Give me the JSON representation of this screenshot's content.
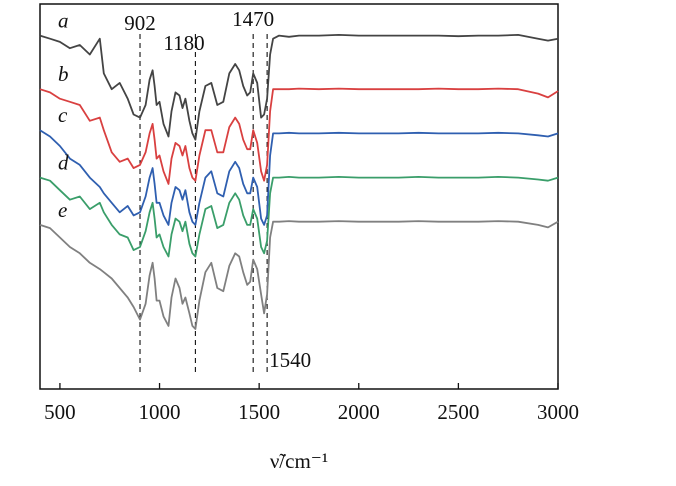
{
  "chart_data": {
    "type": "line",
    "title": "",
    "xlabel": "ν̃/cm⁻¹",
    "ylabel": "",
    "xlim": [
      400,
      3000
    ],
    "x_ticks": [
      500,
      1000,
      1500,
      2000,
      2500,
      3000
    ],
    "grid": false,
    "legend": "none",
    "series": [
      {
        "name": "a",
        "color": "#444444",
        "x": [
          400,
          450,
          500,
          550,
          600,
          650,
          700,
          720,
          760,
          800,
          840,
          870,
          902,
          930,
          950,
          965,
          975,
          985,
          1000,
          1020,
          1045,
          1060,
          1080,
          1100,
          1115,
          1130,
          1150,
          1165,
          1180,
          1200,
          1230,
          1260,
          1290,
          1320,
          1350,
          1380,
          1400,
          1420,
          1440,
          1455,
          1470,
          1490,
          1510,
          1525,
          1540,
          1555,
          1570,
          1600,
          1650,
          1700,
          1800,
          1900,
          2000,
          2100,
          2200,
          2300,
          2400,
          2500,
          2600,
          2700,
          2800,
          2900,
          2950,
          3000
        ],
        "y": [
          5.6,
          5.55,
          5.5,
          5.4,
          5.45,
          5.3,
          5.55,
          5.0,
          4.75,
          4.85,
          4.6,
          4.35,
          4.3,
          4.5,
          4.9,
          5.05,
          4.8,
          4.5,
          4.55,
          4.2,
          4.0,
          4.4,
          4.7,
          4.65,
          4.45,
          4.6,
          4.25,
          4.05,
          3.95,
          4.4,
          4.8,
          4.85,
          4.5,
          4.55,
          5.0,
          5.15,
          5.05,
          4.8,
          4.65,
          4.7,
          5.0,
          4.85,
          4.3,
          4.35,
          4.6,
          5.3,
          5.55,
          5.6,
          5.58,
          5.6,
          5.6,
          5.61,
          5.6,
          5.6,
          5.6,
          5.6,
          5.6,
          5.59,
          5.6,
          5.6,
          5.61,
          5.55,
          5.52,
          5.55
        ]
      },
      {
        "name": "b",
        "color": "#d94040",
        "x": [
          400,
          450,
          500,
          550,
          600,
          650,
          700,
          720,
          760,
          800,
          840,
          870,
          902,
          930,
          950,
          965,
          975,
          985,
          1000,
          1020,
          1045,
          1060,
          1080,
          1100,
          1115,
          1130,
          1150,
          1165,
          1180,
          1200,
          1230,
          1260,
          1290,
          1320,
          1350,
          1380,
          1400,
          1420,
          1440,
          1455,
          1470,
          1490,
          1510,
          1525,
          1540,
          1555,
          1570,
          1600,
          1650,
          1700,
          1800,
          1900,
          2000,
          2100,
          2200,
          2300,
          2400,
          2500,
          2600,
          2700,
          2800,
          2900,
          2950,
          3000
        ],
        "y": [
          4.75,
          4.7,
          4.6,
          4.55,
          4.5,
          4.25,
          4.3,
          4.1,
          3.75,
          3.6,
          3.65,
          3.5,
          3.55,
          3.75,
          4.05,
          4.2,
          3.95,
          3.65,
          3.7,
          3.45,
          3.25,
          3.65,
          3.9,
          3.85,
          3.7,
          3.85,
          3.5,
          3.35,
          3.3,
          3.7,
          4.1,
          4.1,
          3.75,
          3.75,
          4.15,
          4.3,
          4.2,
          3.95,
          3.8,
          3.8,
          4.1,
          3.9,
          3.45,
          3.3,
          3.55,
          4.4,
          4.75,
          4.75,
          4.75,
          4.76,
          4.75,
          4.76,
          4.75,
          4.75,
          4.75,
          4.75,
          4.76,
          4.75,
          4.75,
          4.76,
          4.75,
          4.68,
          4.62,
          4.72
        ]
      },
      {
        "name": "c",
        "color": "#2f5fb0",
        "x": [
          400,
          450,
          500,
          550,
          600,
          650,
          700,
          720,
          760,
          800,
          840,
          870,
          902,
          930,
          950,
          965,
          975,
          985,
          1000,
          1020,
          1045,
          1060,
          1080,
          1100,
          1115,
          1130,
          1150,
          1165,
          1180,
          1200,
          1230,
          1260,
          1290,
          1320,
          1350,
          1380,
          1400,
          1420,
          1440,
          1455,
          1470,
          1490,
          1510,
          1525,
          1540,
          1555,
          1570,
          1600,
          1650,
          1700,
          1800,
          1900,
          2000,
          2100,
          2200,
          2300,
          2400,
          2500,
          2600,
          2700,
          2800,
          2900,
          2950,
          3000
        ],
        "y": [
          4.1,
          4.0,
          3.85,
          3.65,
          3.55,
          3.35,
          3.2,
          3.1,
          2.95,
          2.8,
          2.9,
          2.75,
          2.8,
          3.05,
          3.35,
          3.5,
          3.25,
          2.95,
          2.95,
          2.75,
          2.6,
          2.95,
          3.2,
          3.15,
          3.0,
          3.15,
          2.8,
          2.65,
          2.6,
          2.95,
          3.35,
          3.45,
          3.1,
          3.05,
          3.45,
          3.6,
          3.5,
          3.25,
          3.1,
          3.1,
          3.35,
          3.2,
          2.7,
          2.6,
          2.75,
          3.7,
          4.05,
          4.05,
          4.06,
          4.05,
          4.05,
          4.06,
          4.05,
          4.05,
          4.05,
          4.06,
          4.05,
          4.05,
          4.05,
          4.06,
          4.05,
          4.02,
          4.0,
          4.05
        ]
      },
      {
        "name": "d",
        "color": "#3a9e6a",
        "x": [
          400,
          450,
          500,
          550,
          600,
          650,
          700,
          720,
          760,
          800,
          840,
          870,
          902,
          930,
          950,
          965,
          975,
          985,
          1000,
          1020,
          1045,
          1060,
          1080,
          1100,
          1115,
          1130,
          1150,
          1165,
          1180,
          1200,
          1230,
          1260,
          1290,
          1320,
          1350,
          1380,
          1400,
          1420,
          1440,
          1455,
          1470,
          1490,
          1510,
          1525,
          1540,
          1555,
          1570,
          1600,
          1650,
          1700,
          1800,
          1900,
          2000,
          2100,
          2200,
          2300,
          2400,
          2500,
          2600,
          2700,
          2800,
          2900,
          2950,
          3000
        ],
        "y": [
          3.35,
          3.3,
          3.15,
          3.0,
          3.05,
          2.85,
          2.95,
          2.8,
          2.6,
          2.45,
          2.4,
          2.2,
          2.25,
          2.5,
          2.8,
          2.95,
          2.7,
          2.4,
          2.45,
          2.25,
          2.1,
          2.45,
          2.7,
          2.65,
          2.5,
          2.65,
          2.3,
          2.15,
          2.1,
          2.45,
          2.85,
          2.9,
          2.55,
          2.6,
          2.95,
          3.1,
          3.0,
          2.75,
          2.6,
          2.6,
          2.85,
          2.7,
          2.25,
          2.15,
          2.35,
          3.1,
          3.35,
          3.35,
          3.36,
          3.35,
          3.35,
          3.36,
          3.35,
          3.35,
          3.35,
          3.36,
          3.35,
          3.35,
          3.35,
          3.36,
          3.35,
          3.32,
          3.3,
          3.35
        ]
      },
      {
        "name": "e",
        "color": "#808080",
        "x": [
          400,
          450,
          500,
          550,
          600,
          650,
          700,
          720,
          760,
          800,
          840,
          870,
          902,
          930,
          950,
          965,
          975,
          985,
          1000,
          1020,
          1045,
          1060,
          1080,
          1100,
          1115,
          1130,
          1150,
          1165,
          1180,
          1200,
          1230,
          1260,
          1290,
          1320,
          1350,
          1380,
          1400,
          1420,
          1440,
          1455,
          1470,
          1490,
          1510,
          1525,
          1540,
          1555,
          1570,
          1600,
          1650,
          1700,
          1800,
          1900,
          2000,
          2100,
          2200,
          2300,
          2400,
          2500,
          2600,
          2700,
          2800,
          2900,
          2950,
          3000
        ],
        "y": [
          2.6,
          2.55,
          2.4,
          2.25,
          2.15,
          2.0,
          1.9,
          1.85,
          1.75,
          1.6,
          1.45,
          1.3,
          1.1,
          1.35,
          1.8,
          2.0,
          1.75,
          1.4,
          1.4,
          1.15,
          1.0,
          1.45,
          1.75,
          1.6,
          1.35,
          1.45,
          1.2,
          1.0,
          0.95,
          1.4,
          1.85,
          2.0,
          1.6,
          1.55,
          1.95,
          2.15,
          2.1,
          1.85,
          1.65,
          1.7,
          2.05,
          1.9,
          1.5,
          1.2,
          1.5,
          2.4,
          2.65,
          2.65,
          2.66,
          2.65,
          2.65,
          2.66,
          2.65,
          2.65,
          2.65,
          2.66,
          2.65,
          2.65,
          2.65,
          2.66,
          2.65,
          2.6,
          2.56,
          2.65
        ]
      }
    ],
    "annotations": [
      {
        "text": "902",
        "x": 902
      },
      {
        "text": "1180",
        "x": 1180
      },
      {
        "text": "1470",
        "x": 1470
      },
      {
        "text": "1540",
        "x": 1540
      }
    ]
  }
}
